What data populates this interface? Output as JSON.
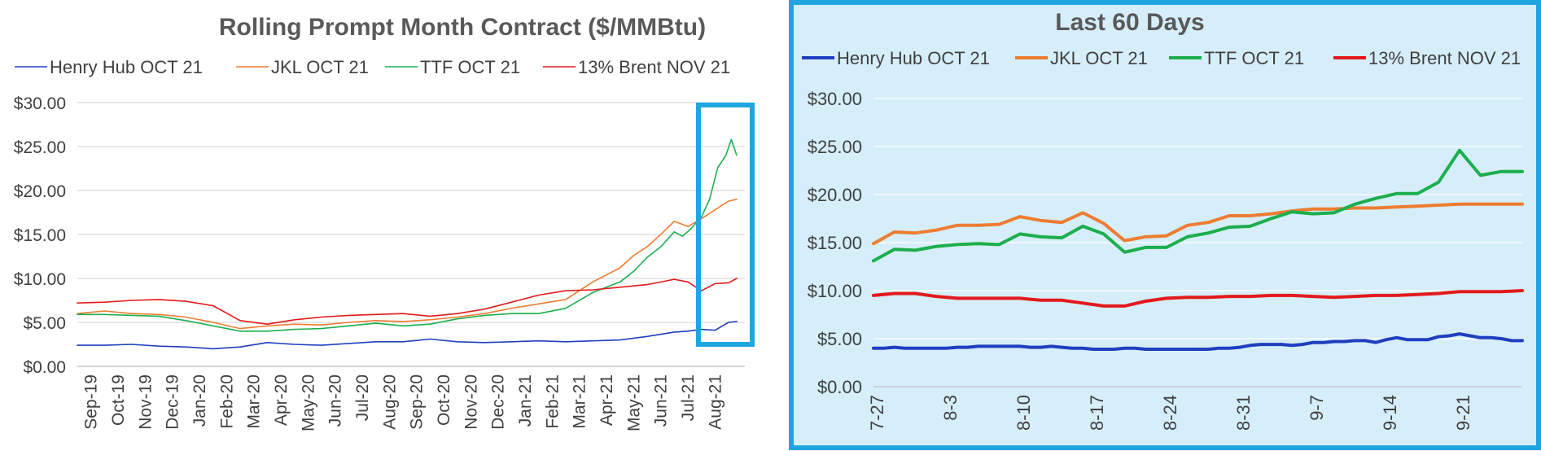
{
  "chart_data": [
    {
      "type": "line",
      "title": "Rolling Prompt Month Contract ($/MMBtu)",
      "legend": "top",
      "grid": true,
      "ylim": [
        0,
        30
      ],
      "yticks": [
        "$0.00",
        "$5.00",
        "$10.00",
        "$15.00",
        "$20.00",
        "$25.00",
        "$30.00"
      ],
      "ytick_values": [
        0,
        5,
        10,
        15,
        20,
        25,
        30
      ],
      "x_labels": [
        "Sep-19",
        "Oct-19",
        "Nov-19",
        "Dec-19",
        "Jan-20",
        "Feb-20",
        "Mar-20",
        "Apr-20",
        "May-20",
        "Jun-20",
        "Jul-20",
        "Aug-20",
        "Sep-20",
        "Oct-20",
        "Nov-20",
        "Dec-20",
        "Jan-21",
        "Feb-21",
        "Mar-21",
        "Apr-21",
        "May-21",
        "Jun-21",
        "Jul-21",
        "Aug-21"
      ],
      "x_months": [
        0,
        24.6
      ],
      "series": [
        {
          "name": "Henry Hub OCT 21",
          "color": "#1f3fbf",
          "x": [
            0,
            1,
            2,
            3,
            4,
            5,
            6,
            7,
            8,
            9,
            10,
            11,
            12,
            13,
            14,
            15,
            16,
            17,
            18,
            19,
            20,
            21,
            22,
            22.5,
            23,
            23.5,
            24,
            24.3
          ],
          "y": [
            2.4,
            2.4,
            2.5,
            2.3,
            2.2,
            2.0,
            2.2,
            2.7,
            2.5,
            2.4,
            2.6,
            2.8,
            2.8,
            3.1,
            2.8,
            2.7,
            2.8,
            2.9,
            2.8,
            2.9,
            3.0,
            3.4,
            3.9,
            4.0,
            4.2,
            4.1,
            5.0,
            5.1
          ]
        },
        {
          "name": "JKL OCT 21",
          "color": "#ed7d31",
          "x": [
            0,
            1,
            2,
            3,
            4,
            5,
            6,
            7,
            8,
            9,
            10,
            11,
            12,
            13,
            14,
            15,
            16,
            17,
            18,
            19,
            20,
            20.5,
            21,
            21.5,
            22,
            22.5,
            23,
            23.5,
            24,
            24.3
          ],
          "y": [
            6.0,
            6.3,
            6.0,
            5.9,
            5.6,
            5.0,
            4.3,
            4.6,
            4.8,
            4.7,
            5.0,
            5.2,
            5.1,
            5.3,
            5.6,
            6.0,
            6.6,
            7.1,
            7.6,
            9.6,
            11.2,
            12.6,
            13.6,
            15.0,
            16.5,
            15.9,
            16.8,
            17.8,
            18.8,
            19.0
          ]
        },
        {
          "name": "TTF OCT 21",
          "color": "#1cae4e",
          "x": [
            0,
            1,
            2,
            3,
            4,
            5,
            6,
            7,
            8,
            9,
            10,
            11,
            12,
            13,
            14,
            15,
            16,
            17,
            18,
            19,
            20,
            20.5,
            21,
            21.5,
            22,
            22.3,
            22.6,
            23,
            23.3,
            23.6,
            23.9,
            24.1,
            24.3
          ],
          "y": [
            5.9,
            5.9,
            5.8,
            5.7,
            5.2,
            4.6,
            4.0,
            4.0,
            4.2,
            4.3,
            4.6,
            4.9,
            4.6,
            4.8,
            5.4,
            5.8,
            6.0,
            6.0,
            6.6,
            8.4,
            9.6,
            10.8,
            12.4,
            13.6,
            15.3,
            14.8,
            15.6,
            17.0,
            19.0,
            22.6,
            24.0,
            25.8,
            24.0
          ]
        },
        {
          "name": "13% Brent NOV 21",
          "color": "#e31a1c",
          "x": [
            0,
            1,
            2,
            3,
            4,
            5,
            6,
            7,
            8,
            9,
            10,
            11,
            12,
            13,
            14,
            15,
            16,
            17,
            18,
            19,
            20,
            21,
            22,
            22.5,
            23,
            23.5,
            24,
            24.3
          ],
          "y": [
            7.2,
            7.3,
            7.5,
            7.6,
            7.4,
            6.9,
            5.2,
            4.8,
            5.3,
            5.6,
            5.8,
            5.9,
            6.0,
            5.7,
            6.0,
            6.5,
            7.3,
            8.1,
            8.6,
            8.7,
            9.0,
            9.3,
            9.9,
            9.6,
            8.6,
            9.4,
            9.5,
            10.0
          ]
        }
      ]
    },
    {
      "type": "line",
      "title": "Last 60 Days",
      "legend": "top",
      "grid": true,
      "ylim": [
        0,
        30
      ],
      "yticks": [
        "$0.00",
        "$5.00",
        "$10.00",
        "$15.00",
        "$20.00",
        "$25.00",
        "$30.00"
      ],
      "ytick_values": [
        0,
        5,
        10,
        15,
        20,
        25,
        30
      ],
      "x_labels": [
        "7-27",
        "8-3",
        "8-10",
        "8-17",
        "8-24",
        "8-31",
        "9-7",
        "9-14",
        "9-21"
      ],
      "x_days": [
        0,
        62
      ],
      "series": [
        {
          "name": "Henry Hub OCT 21",
          "color": "#1f3fbf",
          "x": [
            0,
            1,
            2,
            3,
            4,
            5,
            6,
            7,
            8,
            9,
            10,
            11,
            12,
            13,
            14,
            15,
            16,
            17,
            18,
            19,
            20,
            21,
            22,
            23,
            24,
            25,
            26,
            27,
            28,
            29,
            30,
            31,
            32,
            33,
            34,
            35,
            36,
            37,
            38,
            39,
            40,
            41,
            42,
            43,
            44,
            45,
            46,
            47,
            48,
            49,
            50,
            51,
            52,
            53,
            54,
            55,
            56,
            57,
            58,
            59,
            60,
            61,
            62
          ],
          "y": [
            4.0,
            4.0,
            4.1,
            4.0,
            4.0,
            4.0,
            4.0,
            4.0,
            4.1,
            4.1,
            4.2,
            4.2,
            4.2,
            4.2,
            4.2,
            4.1,
            4.1,
            4.2,
            4.1,
            4.0,
            4.0,
            3.9,
            3.9,
            3.9,
            4.0,
            4.0,
            3.9,
            3.9,
            3.9,
            3.9,
            3.9,
            3.9,
            3.9,
            4.0,
            4.0,
            4.1,
            4.3,
            4.4,
            4.4,
            4.4,
            4.3,
            4.4,
            4.6,
            4.6,
            4.7,
            4.7,
            4.8,
            4.8,
            4.6,
            4.9,
            5.1,
            4.9,
            4.9,
            4.9,
            5.2,
            5.3,
            5.5,
            5.3,
            5.1,
            5.1,
            5.0,
            4.8,
            4.8
          ]
        },
        {
          "name": "JKL OCT 21",
          "color": "#ed7d31",
          "x": [
            0,
            2,
            4,
            6,
            8,
            10,
            12,
            14,
            16,
            18,
            20,
            22,
            24,
            26,
            28,
            30,
            32,
            34,
            36,
            38,
            40,
            42,
            44,
            46,
            48,
            50,
            52,
            54,
            56,
            58,
            60,
            62
          ],
          "y": [
            14.9,
            16.1,
            16.0,
            16.3,
            16.8,
            16.8,
            16.9,
            17.7,
            17.3,
            17.1,
            18.1,
            17.0,
            15.2,
            15.6,
            15.7,
            16.8,
            17.1,
            17.8,
            17.8,
            18.0,
            18.3,
            18.5,
            18.5,
            18.6,
            18.6,
            18.7,
            18.8,
            18.9,
            19.0,
            19.0,
            19.0,
            19.0
          ]
        },
        {
          "name": "TTF OCT 21",
          "color": "#1cae4e",
          "x": [
            0,
            2,
            4,
            6,
            8,
            10,
            12,
            14,
            16,
            18,
            20,
            22,
            24,
            26,
            28,
            30,
            32,
            34,
            36,
            38,
            40,
            42,
            44,
            46,
            48,
            50,
            52,
            54,
            56,
            58,
            60,
            62
          ],
          "y": [
            13.1,
            14.3,
            14.2,
            14.6,
            14.8,
            14.9,
            14.8,
            15.9,
            15.6,
            15.5,
            16.7,
            15.9,
            14.0,
            14.5,
            14.5,
            15.6,
            16.0,
            16.6,
            16.7,
            17.5,
            18.2,
            18.0,
            18.1,
            19.0,
            19.6,
            20.1,
            20.1,
            21.3,
            24.6,
            22.0,
            22.4,
            22.4
          ]
        },
        {
          "name": "13% Brent NOV 21",
          "color": "#e31a1c",
          "x": [
            0,
            2,
            4,
            6,
            8,
            10,
            12,
            14,
            16,
            18,
            20,
            22,
            24,
            26,
            28,
            30,
            32,
            34,
            36,
            38,
            40,
            42,
            44,
            46,
            48,
            50,
            52,
            54,
            56,
            58,
            60,
            62
          ],
          "y": [
            9.5,
            9.7,
            9.7,
            9.4,
            9.2,
            9.2,
            9.2,
            9.2,
            9.0,
            9.0,
            8.7,
            8.4,
            8.4,
            8.9,
            9.2,
            9.3,
            9.3,
            9.4,
            9.4,
            9.5,
            9.5,
            9.4,
            9.3,
            9.4,
            9.5,
            9.5,
            9.6,
            9.7,
            9.9,
            9.9,
            9.9,
            10.0
          ]
        }
      ]
    }
  ]
}
